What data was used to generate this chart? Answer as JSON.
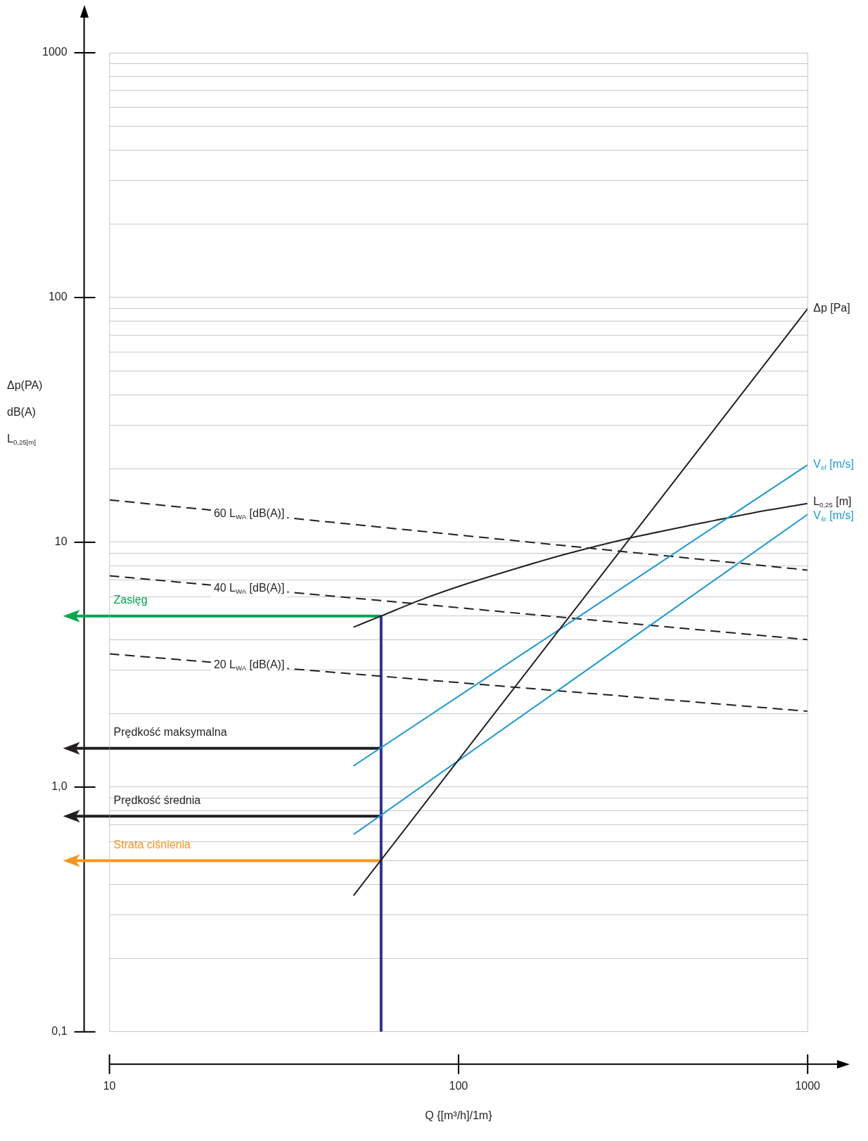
{
  "chart_data": {
    "type": "line",
    "xlabel": "Q {[m³/h]/1m}",
    "ylabel": "Δp(PA)\ndB(A)\nL$_{0,25[m]}$",
    "log": "xy",
    "grid": "y",
    "legend": false,
    "marker": "none",
    "line_style": "solid",
    "xlim": [
      10,
      1000
    ],
    "xticks": [
      10,
      100,
      1000
    ],
    "ylim": [
      0.1,
      1000
    ],
    "yticks": [
      {
        "value": 0.1,
        "label": "0,1"
      },
      {
        "value": 0.2,
        "label": null
      },
      {
        "value": 0.3,
        "label": null
      },
      {
        "value": 0.4,
        "label": null
      },
      {
        "value": 0.5,
        "label": null
      },
      {
        "value": 0.6,
        "label": null
      },
      {
        "value": 0.7,
        "label": null
      },
      {
        "value": 0.8,
        "label": null
      },
      {
        "value": 0.9,
        "label": null
      },
      {
        "value": 1,
        "label": "1,0"
      },
      {
        "value": 2,
        "label": null
      },
      {
        "value": 3,
        "label": null
      },
      {
        "value": 4,
        "label": null
      },
      {
        "value": 5,
        "label": null
      },
      {
        "value": 6,
        "label": null
      },
      {
        "value": 7,
        "label": null
      },
      {
        "value": 8,
        "label": null
      },
      {
        "value": 9,
        "label": null
      },
      10,
      {
        "value": 20,
        "label": null
      },
      {
        "value": 30,
        "label": null
      },
      {
        "value": 40,
        "label": null
      },
      {
        "value": 50,
        "label": null
      },
      {
        "value": 60,
        "label": null
      },
      {
        "value": 70,
        "label": null
      },
      {
        "value": 80,
        "label": null
      },
      {
        "value": 90,
        "label": null
      },
      100,
      {
        "value": 200,
        "label": null
      },
      {
        "value": 300,
        "label": null
      },
      {
        "value": 400,
        "label": null
      },
      {
        "value": 500,
        "label": null
      },
      {
        "value": 600,
        "label": null
      },
      {
        "value": 700,
        "label": null
      },
      {
        "value": 800,
        "label": null
      },
      {
        "value": 900,
        "label": null
      },
      1000
    ],
    "series": [
      {
        "name": "Δp [Pa]",
        "color": "#231f20",
        "x": [
          50,
          1000
        ],
        "values": [
          0.36,
          90
        ]
      },
      {
        "name": "V$_{ef}$ [m/s]",
        "color": "#1a9ad6",
        "x": [
          50,
          1000
        ],
        "values": [
          1.22,
          20.7
        ]
      },
      {
        "name": "L$_{0,25}$ [m]",
        "color": "#231f20",
        "x": [
          50,
          60,
          80,
          100,
          150,
          200,
          300,
          500,
          700,
          1000
        ],
        "values": [
          4.5,
          5.0,
          5.9,
          6.6,
          7.9,
          8.9,
          10.3,
          12.0,
          13.2,
          14.4
        ]
      },
      {
        "name": "V$_{śr}$ [m/s]",
        "color": "#1a9ad6",
        "x": [
          50,
          1000
        ],
        "values": [
          0.64,
          13.0
        ]
      },
      {
        "name": "60 L$_{WA}$ [dB(A)]",
        "color": "#231f20",
        "line_style": "dashed",
        "x": [
          10,
          1000
        ],
        "values": [
          14.9,
          7.7
        ]
      },
      {
        "name": "40 L$_{WA}$ [dB(A)]",
        "color": "#231f20",
        "line_style": "dashed",
        "x": [
          10,
          1000
        ],
        "values": [
          7.3,
          4.0
        ]
      },
      {
        "name": "20 L$_{WA}$ [dB(A)]",
        "color": "#231f20",
        "line_style": "dashed",
        "x": [
          10,
          1000
        ],
        "values": [
          3.5,
          2.04
        ]
      },
      {
        "color": "#2e3192",
        "x": [
          60,
          60
        ],
        "values": [
          0.1,
          5.0
        ]
      },
      {
        "name": "Zasięg",
        "color": "#00a650",
        "x": [
          60,
          10
        ],
        "values": [
          5.0,
          5.0
        ]
      },
      {
        "name": "Prędkość maksymalna",
        "color": "#231f20",
        "x": [
          60,
          10
        ],
        "values": [
          1.44,
          1.44
        ]
      },
      {
        "name": "Prędkość średnia",
        "color": "#231f20",
        "x": [
          60,
          10
        ],
        "values": [
          0.76,
          0.76
        ]
      },
      {
        "name": "Strata ciśnienia",
        "color": "#f7941d",
        "x": [
          60,
          10
        ],
        "values": [
          0.5,
          0.5
        ]
      }
    ]
  }
}
